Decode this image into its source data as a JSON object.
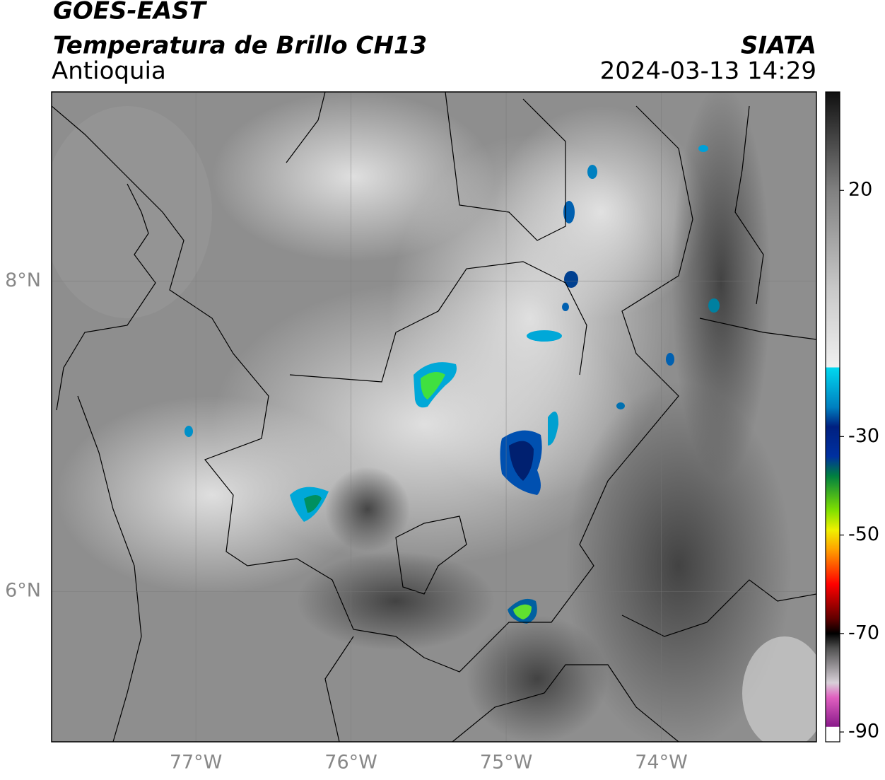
{
  "header": {
    "title": "GOES-EAST",
    "subtitle": "Temperatura de Brillo CH13",
    "region": "Antioquia",
    "source": "SIATA",
    "timestamp": "2024-03-13 14:29"
  },
  "map": {
    "xlim": [
      -77.93,
      -73.0
    ],
    "ylim": [
      5.03,
      9.22
    ],
    "xticks": [
      {
        "value": -77,
        "label": "77°W"
      },
      {
        "value": -76,
        "label": "76°W"
      },
      {
        "value": -75,
        "label": "75°W"
      },
      {
        "value": -74,
        "label": "74°W"
      }
    ],
    "yticks": [
      {
        "value": 8,
        "label": "8°N"
      },
      {
        "value": 6,
        "label": "6°N"
      }
    ],
    "grid": true
  },
  "colorbar": {
    "lim": [
      -92,
      40
    ],
    "ticks": [
      20,
      -30,
      -50,
      -70,
      -90
    ],
    "stops": [
      {
        "value": -92,
        "color": "#ffffff"
      },
      {
        "value": -89,
        "color": "#ffffff"
      },
      {
        "value": -88.9,
        "color": "#8a1a8a"
      },
      {
        "value": -83,
        "color": "#e060c0"
      },
      {
        "value": -80,
        "color": "#d8d0d8"
      },
      {
        "value": -73,
        "color": "#505050"
      },
      {
        "value": -70,
        "color": "#000000"
      },
      {
        "value": -67,
        "color": "#600000"
      },
      {
        "value": -60,
        "color": "#ff0000"
      },
      {
        "value": -53,
        "color": "#ffa000"
      },
      {
        "value": -49,
        "color": "#f0f000"
      },
      {
        "value": -45,
        "color": "#80e000"
      },
      {
        "value": -38,
        "color": "#008040"
      },
      {
        "value": -34,
        "color": "#0030a0"
      },
      {
        "value": -28,
        "color": "#002080"
      },
      {
        "value": -24,
        "color": "#0080c0"
      },
      {
        "value": -16,
        "color": "#00d8f0"
      },
      {
        "value": -15.9,
        "color": "#f0f0f0"
      },
      {
        "value": 0,
        "color": "#c8c8c8"
      },
      {
        "value": 20,
        "color": "#808080"
      },
      {
        "value": 40,
        "color": "#101010"
      }
    ]
  }
}
